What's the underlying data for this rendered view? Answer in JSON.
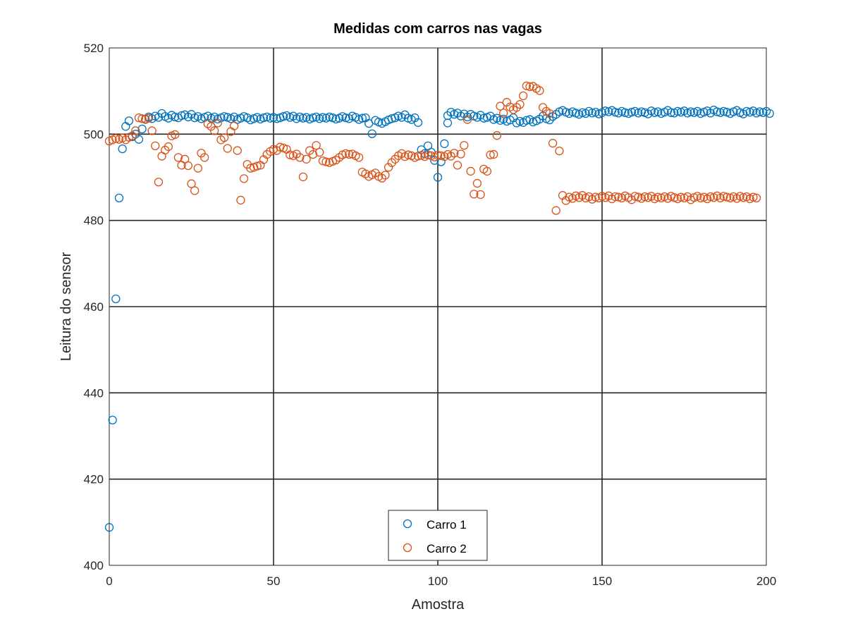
{
  "chart_data": {
    "type": "scatter",
    "title": "Medidas com carros nas vagas",
    "xlabel": "Amostra",
    "ylabel": "Leitura do sensor",
    "xlim": [
      0,
      200
    ],
    "ylim": [
      400,
      520
    ],
    "xticks": [
      0,
      50,
      100,
      150,
      200
    ],
    "yticks": [
      400,
      420,
      440,
      460,
      480,
      500,
      520
    ],
    "grid": true,
    "legend_position": "bottom-center",
    "marker": "circle-open",
    "series": [
      {
        "name": "Carro 1",
        "color": "#0072BD",
        "segments": [
          {
            "x_start": 0,
            "values": [
              408.8,
              433.7,
              461.8,
              485.2,
              496.6,
              501.8,
              503.1,
              499.4,
              500.0,
              498.8,
              501.2,
              503.5,
              504.0,
              503.6,
              504.2,
              503.9,
              504.8,
              504.1,
              503.7,
              504.4,
              504.0,
              503.8,
              504.3,
              504.5,
              504.0,
              504.6,
              503.8,
              504.1,
              503.6,
              503.9,
              504.2,
              503.7,
              504.0,
              503.5,
              503.8,
              504.1,
              503.9,
              503.6,
              504.0,
              503.4,
              503.7,
              504.1,
              503.8,
              503.3,
              503.6,
              503.9,
              503.5,
              503.8,
              504.0,
              503.7,
              503.9,
              503.6,
              503.8,
              504.1,
              504.3,
              503.9,
              504.2,
              503.6,
              504.0,
              503.7,
              503.9,
              503.5,
              503.8,
              504.0,
              503.6,
              503.9,
              503.7,
              504.0,
              503.8,
              503.5,
              503.7,
              504.1,
              503.8,
              503.6,
              504.2,
              503.9,
              503.4,
              503.7,
              503.8,
              502.5,
              500.1,
              503.2,
              502.8,
              502.5,
              502.9,
              503.3,
              503.6,
              503.8,
              504.2,
              503.9,
              504.5,
              503.7,
              503.4,
              503.8,
              502.7,
              496.4,
              495.5,
              497.3,
              495.8,
              493.9,
              490.0,
              493.6,
              497.8,
              502.6
            ]
          },
          {
            "x_start": 103,
            "values": [
              504.3,
              505.1,
              504.6,
              504.9,
              504.2,
              504.7,
              504.0,
              504.6,
              504.2,
              503.9,
              504.4,
              503.7,
              503.9,
              504.2,
              503.4,
              503.7,
              503.2,
              503.5,
              503.0,
              503.3,
              503.8,
              502.6,
              503.0,
              502.7,
              503.2,
              503.4,
              502.8,
              503.1,
              503.5,
              504.2,
              503.6,
              503.3,
              504.1,
              504.6,
              505.2,
              505.5,
              505.1,
              504.8,
              505.2,
              504.9,
              504.6,
              505.0,
              504.8,
              505.3,
              504.9,
              505.1,
              504.7,
              505.0,
              505.4,
              505.2,
              505.5,
              505.1,
              504.9,
              505.3,
              505.0,
              504.8,
              505.1,
              505.3,
              504.9,
              505.2,
              505.0,
              504.7,
              505.4,
              505.0,
              505.2,
              504.8,
              505.1,
              505.5,
              505.0,
              504.9,
              505.3,
              505.1,
              505.4,
              504.9,
              505.2,
              505.0,
              505.3,
              504.8,
              505.1,
              505.4,
              504.9,
              505.6,
              505.2,
              505.0,
              505.3,
              505.1,
              504.8,
              505.2,
              505.5,
              505.0,
              504.7,
              505.3,
              505.1,
              505.4,
              504.9,
              505.2,
              505.0,
              505.3,
              504.8
            ]
          }
        ]
      },
      {
        "name": "Carro 2",
        "color": "#D95319",
        "segments": [
          {
            "x_start": 0,
            "values": [
              498.4,
              498.7,
              499.0,
              498.8,
              499.1,
              498.7,
              499.3,
              499.6,
              500.8,
              503.8,
              503.6,
              503.4,
              503.7,
              500.8,
              497.3,
              488.9,
              494.9,
              496.3,
              497.1,
              499.6,
              499.9,
              494.6,
              492.8,
              494.2,
              492.7,
              488.5,
              486.9,
              492.1,
              495.6,
              494.6,
              502.4,
              501.8,
              500.8,
              502.6,
              498.7,
              499.2,
              496.7,
              500.6,
              501.9,
              496.2,
              484.7,
              489.7,
              493.0,
              492.1,
              492.3,
              492.6,
              492.8,
              494.1,
              495.3,
              496.0,
              496.5,
              496.2,
              497.0,
              496.8,
              496.5,
              495.2,
              495.0,
              495.4,
              494.6,
              490.1,
              494.2,
              496.2,
              495.3,
              497.4,
              495.8,
              493.8,
              493.6,
              493.4,
              493.7,
              494.0,
              494.6,
              495.2,
              495.5,
              495.3,
              495.4,
              495.0,
              494.6,
              491.2,
              490.8,
              490.2,
              490.6,
              491.0,
              490.2,
              489.8,
              490.5,
              492.3,
              493.4,
              494.2,
              495.0,
              495.5,
              494.8,
              495.2,
              495.0,
              494.6,
              494.9,
              495.1,
              494.8,
              495.2,
              495.0,
              494.7,
              495.1,
              495.0,
              494.8,
              495.3
            ]
          },
          {
            "x_start": 104,
            "values": [
              494.9,
              495.6,
              492.8,
              495.4,
              497.4,
              503.4,
              491.4,
              486.1,
              488.6,
              486.0,
              491.9,
              491.4,
              495.2,
              495.3,
              499.7,
              506.5,
              504.9,
              507.4,
              506.3,
              505.7,
              506.2,
              506.9,
              508.9,
              511.2,
              511.0,
              511.1,
              510.6,
              510.1,
              506.2,
              505.3,
              504.8,
              497.9,
              482.3,
              496.1,
              485.8,
              484.6,
              485.4,
              485.1,
              485.7,
              485.3,
              485.8,
              485.2,
              485.5,
              484.9,
              485.4,
              485.2,
              485.6,
              485.3,
              485.7,
              485.0,
              485.5,
              485.4,
              485.2,
              485.7,
              485.3,
              484.8,
              485.6,
              485.4,
              485.1,
              485.5,
              485.3,
              485.6,
              485.0,
              485.4,
              485.2,
              485.5,
              485.1,
              485.6,
              485.3,
              485.0,
              485.4,
              485.2,
              485.5,
              484.8,
              485.3,
              485.6,
              485.2,
              485.4,
              485.0,
              485.5,
              485.3,
              485.7,
              485.2,
              485.6,
              485.4,
              485.2,
              485.5,
              485.1,
              485.6,
              485.3,
              485.5,
              485.0,
              485.4,
              485.2
            ]
          }
        ]
      }
    ]
  }
}
